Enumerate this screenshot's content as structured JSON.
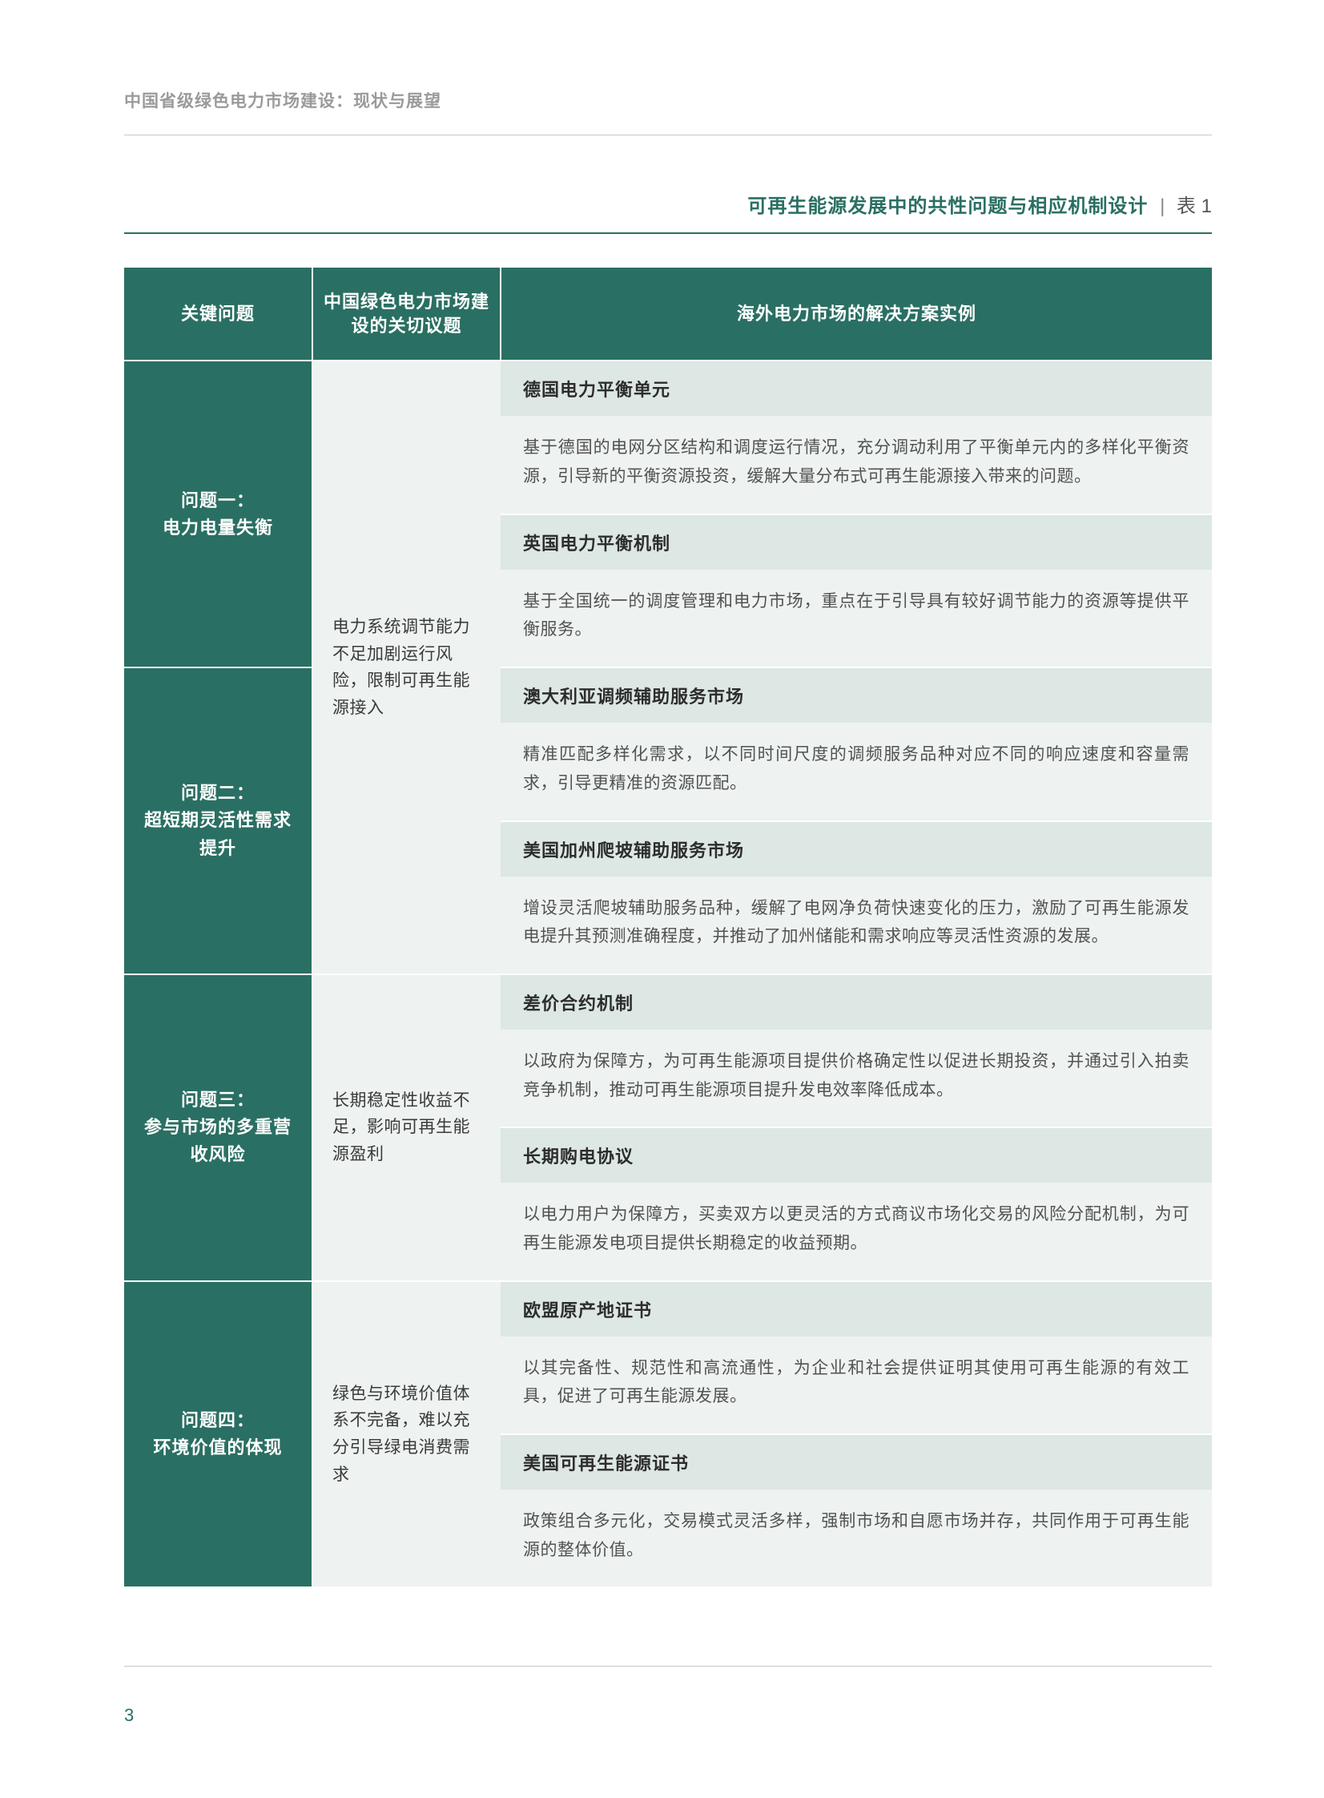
{
  "header": "中国省级绿色电力市场建设：现状与展望",
  "tableTitle": {
    "main": "可再生能源发展中的共性问题与相应机制设计",
    "sep": "|",
    "num": "表 1"
  },
  "columns": {
    "col1": "关键问题",
    "col2": "中国绿色电力市场建设的关切议题",
    "col3": "海外电力市场的解决方案实例"
  },
  "issues": {
    "i1": {
      "label": "问题一：",
      "title": "电力电量失衡"
    },
    "i2": {
      "label": "问题二：",
      "title": "超短期灵活性需求提升"
    },
    "i3": {
      "label": "问题三：",
      "title": "参与市场的多重营收风险"
    },
    "i4": {
      "label": "问题四：",
      "title": "环境价值的体现"
    }
  },
  "concerns": {
    "c12": "电力系统调节能力不足加剧运行风险，限制可再生能源接入",
    "c3": "长期稳定性收益不足，影响可再生能源盈利",
    "c4": "绿色与环境价值体系不完备，难以充分引导绿电消费需求"
  },
  "solutions": {
    "s1h": "德国电力平衡单元",
    "s1b": "基于德国的电网分区结构和调度运行情况，充分调动利用了平衡单元内的多样化平衡资源，引导新的平衡资源投资，缓解大量分布式可再生能源接入带来的问题。",
    "s2h": "英国电力平衡机制",
    "s2b": "基于全国统一的调度管理和电力市场，重点在于引导具有较好调节能力的资源等提供平衡服务。",
    "s3h": "澳大利亚调频辅助服务市场",
    "s3b": "精准匹配多样化需求，以不同时间尺度的调频服务品种对应不同的响应速度和容量需求，引导更精准的资源匹配。",
    "s4h": "美国加州爬坡辅助服务市场",
    "s4b": "增设灵活爬坡辅助服务品种，缓解了电网净负荷快速变化的压力，激励了可再生能源发电提升其预测准确程度，并推动了加州储能和需求响应等灵活性资源的发展。",
    "s5h": "差价合约机制",
    "s5b": "以政府为保障方，为可再生能源项目提供价格确定性以促进长期投资，并通过引入拍卖竞争机制，推动可再生能源项目提升发电效率降低成本。",
    "s6h": "长期购电协议",
    "s6b": "以电力用户为保障方，买卖双方以更灵活的方式商议市场化交易的风险分配机制，为可再生能源发电项目提供长期稳定的收益预期。",
    "s7h": "欧盟原产地证书",
    "s7b": "以其完备性、规范性和高流通性，为企业和社会提供证明其使用可再生能源的有效工具，促进了可再生能源发展。",
    "s8h": "美国可再生能源证书",
    "s8b": "政策组合多元化，交易模式灵活多样，强制市场和自愿市场并存，共同作用于可再生能源的整体价值。"
  },
  "pageNumber": "3",
  "colors": {
    "brand": "#2a6f63",
    "headerText": "#9a9a9a",
    "rule": "#c8c8c8",
    "solHeadBg": "#dde7e4",
    "bodyBg": "#eef2f1",
    "bodyText": "#525252"
  }
}
